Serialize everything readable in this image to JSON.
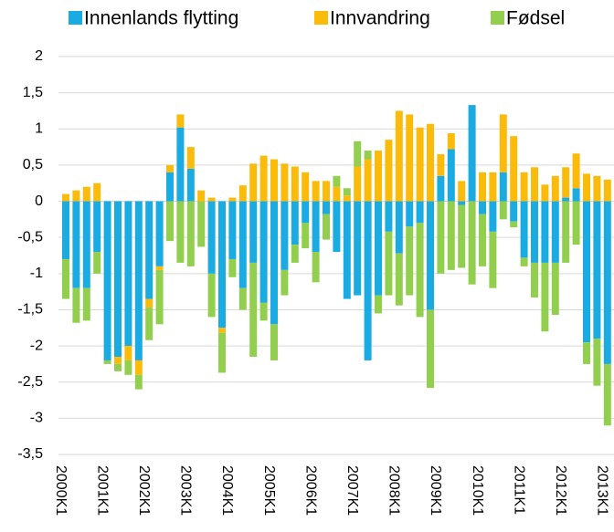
{
  "chart_data": {
    "type": "bar",
    "stacked": true,
    "categories": [
      "2000K1",
      null,
      null,
      null,
      "2001K1",
      null,
      null,
      null,
      "2002K1",
      null,
      null,
      null,
      "2003K1",
      null,
      null,
      null,
      "2004K1",
      null,
      null,
      null,
      "2005K1",
      null,
      null,
      null,
      "2006K1",
      null,
      null,
      null,
      "2007K1",
      null,
      null,
      null,
      "2008K1",
      null,
      null,
      null,
      "2009K1",
      null,
      null,
      null,
      "2010K1",
      null,
      null,
      null,
      "2011K1",
      null,
      null,
      null,
      "2012K1",
      null,
      null,
      null,
      "2013K1",
      null
    ],
    "series": [
      {
        "name": "Innenlands flytting",
        "color": "#1aabe2",
        "values": [
          -0.8,
          -1.2,
          -1.2,
          -0.7,
          -2.2,
          -2.15,
          -2.0,
          -2.2,
          -1.35,
          -0.9,
          0.4,
          1.02,
          0.45,
          0,
          -1.0,
          -1.75,
          -0.8,
          -1.2,
          -0.85,
          -1.4,
          -1.7,
          -0.95,
          -0.6,
          -0.3,
          -0.7,
          -0.18,
          -0.7,
          -1.35,
          -1.3,
          -2.2,
          -1.3,
          -0.42,
          -0.72,
          -0.35,
          -0.3,
          -1.5,
          0.35,
          0.72,
          -0.05,
          1.33,
          -0.18,
          -0.42,
          0.4,
          -0.28,
          -0.78,
          -0.85,
          -0.85,
          -0.85,
          0.05,
          0.18,
          -1.95,
          -1.9,
          -2.25,
          -2.25
        ]
      },
      {
        "name": "Innvandring",
        "color": "#fbbb0a",
        "values": [
          0.1,
          0.15,
          0.2,
          0.25,
          0,
          -0.1,
          -0.2,
          -0.2,
          -0.12,
          -0.05,
          0.1,
          0.18,
          0.3,
          0.15,
          0.05,
          -0.07,
          0.05,
          0.22,
          0.52,
          0.63,
          0.58,
          0.52,
          0.48,
          0.4,
          0.28,
          0.28,
          0.2,
          0.08,
          0.48,
          0.58,
          0.7,
          0.85,
          1.25,
          1.2,
          1.02,
          1.07,
          0.3,
          0.22,
          0.28,
          0,
          0.4,
          0.4,
          0.8,
          0.9,
          0.4,
          0.47,
          0.23,
          0.35,
          0.42,
          0.48,
          0.38,
          0.35,
          0.3,
          0.15
        ]
      },
      {
        "name": "Fødsel",
        "color": "#92cf4f",
        "values": [
          -0.55,
          -0.48,
          -0.45,
          -0.3,
          -0.05,
          -0.1,
          -0.2,
          -0.2,
          -0.45,
          -0.75,
          -0.55,
          -0.85,
          -0.9,
          -0.63,
          -0.6,
          -0.55,
          -0.25,
          -0.3,
          -1.3,
          -0.25,
          -0.5,
          -0.35,
          -0.25,
          -0.35,
          -0.42,
          -0.35,
          0.15,
          0.1,
          0.35,
          0.12,
          -0.25,
          -0.88,
          -0.72,
          -0.95,
          -1.3,
          -1.08,
          -1.0,
          -0.95,
          -0.87,
          -1.15,
          -0.72,
          -0.78,
          -0.25,
          -0.08,
          -0.12,
          -0.48,
          -0.95,
          -0.72,
          -0.85,
          -0.6,
          -0.3,
          -0.65,
          -0.85,
          -0.95
        ]
      }
    ],
    "ylim": [
      -3.5,
      2
    ],
    "yticks": [
      2,
      {
        "value": 1.5,
        "label": "1,5"
      },
      1,
      {
        "value": 0.5,
        "label": "0,5"
      },
      0,
      {
        "value": -0.5,
        "label": "-0,5"
      },
      -1,
      {
        "value": -1.5,
        "label": "-1,5"
      },
      -2,
      {
        "value": -2.5,
        "label": "-2,5"
      },
      -3,
      {
        "value": -3.5,
        "label": "-3,5"
      }
    ],
    "grid": true,
    "legend": "top"
  }
}
